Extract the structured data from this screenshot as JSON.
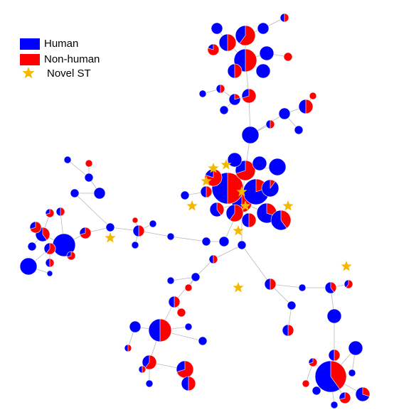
{
  "legend": {
    "items": [
      {
        "label": "Human",
        "color": "#0000ff"
      },
      {
        "label": "Non-human",
        "color": "#ff0000"
      },
      {
        "label": "Novel ST",
        "color": "#f5b800"
      }
    ]
  }
}
